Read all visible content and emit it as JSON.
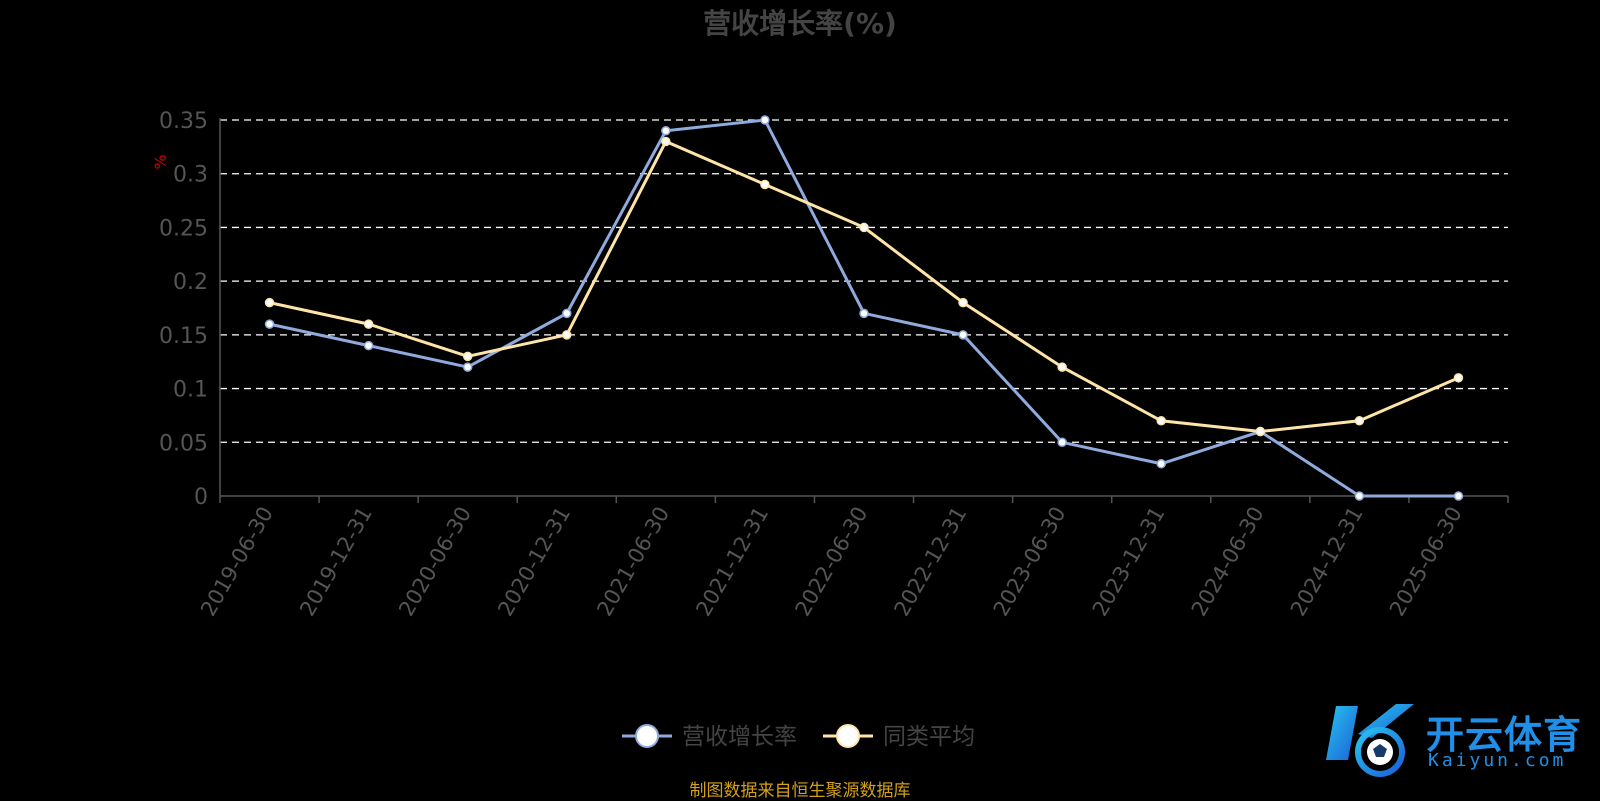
{
  "chart_data": {
    "type": "line",
    "title": "营收增长率(%)",
    "ylabel": "%",
    "xlabel": "",
    "ylim": [
      0,
      0.35
    ],
    "yticks": [
      "0",
      "0.05",
      "0.1",
      "0.15",
      "0.2",
      "0.25",
      "0.3",
      "0.35"
    ],
    "categories": [
      "2019-06-30",
      "2019-12-31",
      "2020-06-30",
      "2020-12-31",
      "2021-06-30",
      "2021-12-31",
      "2022-06-30",
      "2022-12-31",
      "2023-06-30",
      "2023-12-31",
      "2024-06-30",
      "2024-12-31",
      "2025-06-30"
    ],
    "series": [
      {
        "name": "营收增长率",
        "color": "#8faadc",
        "values": [
          0.16,
          0.14,
          0.12,
          0.17,
          0.34,
          0.35,
          0.17,
          0.15,
          0.05,
          0.03,
          0.06,
          0.0,
          0.0
        ]
      },
      {
        "name": "同类平均",
        "color": "#ffe4a8",
        "values": [
          0.18,
          0.16,
          0.13,
          0.15,
          0.33,
          0.29,
          0.25,
          0.18,
          0.12,
          0.07,
          0.06,
          0.07,
          0.11
        ]
      }
    ],
    "grid": true,
    "legend_position": "bottom"
  },
  "footer": {
    "source": "制图数据来自恒生聚源数据库"
  },
  "logo": {
    "cn": "开云体育",
    "en": "Kaiyun.com"
  },
  "colors": {
    "axis": "#555555",
    "tick_text": "#555555",
    "grid": "#ffffff",
    "ylabel": "#cc0000",
    "source": "#d4a017",
    "logo": "#1f8fe8"
  }
}
